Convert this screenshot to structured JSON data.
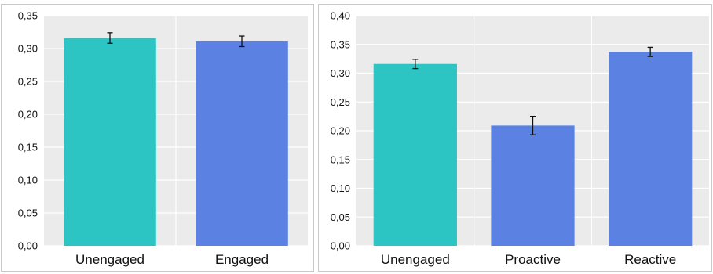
{
  "colors": {
    "teal": "#2dc4c4",
    "blue": "#5b82e2",
    "plot_bg": "#ebebeb"
  },
  "chart_data": [
    {
      "type": "bar",
      "categories": [
        "Unengaged",
        "Engaged"
      ],
      "values": [
        0.316,
        0.311
      ],
      "error": [
        0.008,
        0.008
      ],
      "bar_colors": [
        "#2dc4c4",
        "#5b82e2"
      ],
      "ylim": [
        0,
        0.35
      ],
      "yticks": [
        0,
        0.05,
        0.1,
        0.15,
        0.2,
        0.25,
        0.3,
        0.35
      ],
      "ytick_labels": [
        "0,00",
        "0,05",
        "0,10",
        "0,15",
        "0,20",
        "0,25",
        "0,30",
        "0,35"
      ],
      "grid": true
    },
    {
      "type": "bar",
      "categories": [
        "Unengaged",
        "Proactive",
        "Reactive"
      ],
      "values": [
        0.316,
        0.209,
        0.337
      ],
      "error": [
        0.008,
        0.016,
        0.008
      ],
      "bar_colors": [
        "#2dc4c4",
        "#5b82e2",
        "#5b82e2"
      ],
      "ylim": [
        0,
        0.4
      ],
      "yticks": [
        0,
        0.05,
        0.1,
        0.15,
        0.2,
        0.25,
        0.3,
        0.35,
        0.4
      ],
      "ytick_labels": [
        "0,00",
        "0,05",
        "0,10",
        "0,15",
        "0,20",
        "0,25",
        "0,30",
        "0,35",
        "0,40"
      ],
      "grid": true
    }
  ]
}
